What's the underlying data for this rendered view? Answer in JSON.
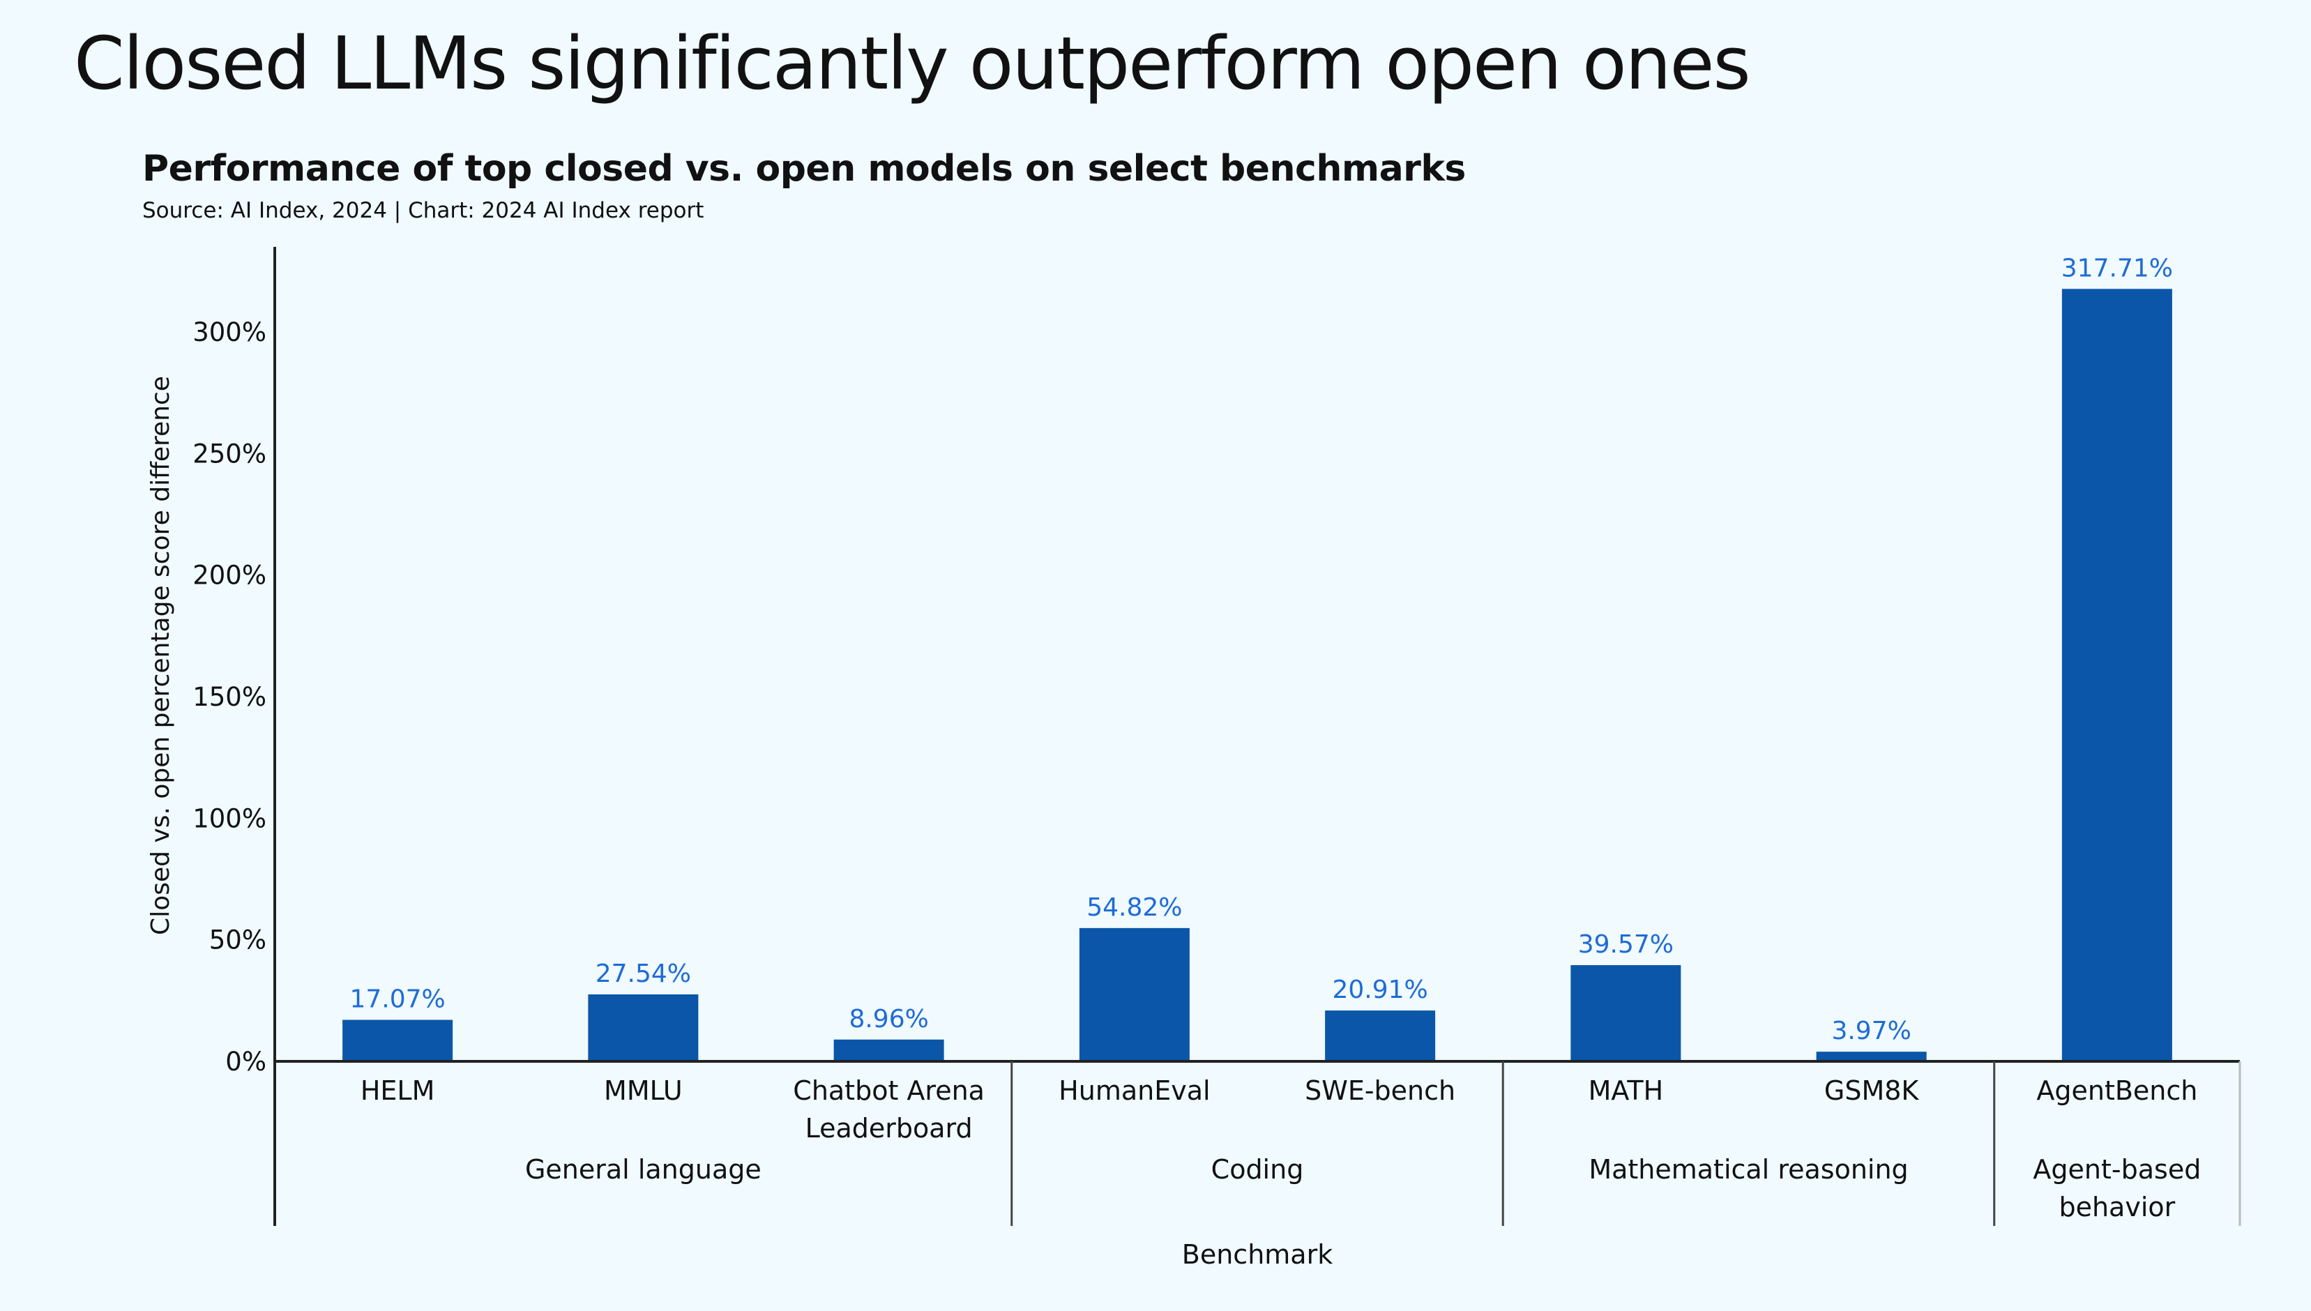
{
  "slide": {
    "title": "Closed LLMs significantly outperform open ones"
  },
  "chart_data": {
    "type": "bar",
    "title": "Performance of top closed vs. open models on select benchmarks",
    "subtitle": "Source: AI Index, 2024 | Chart: 2024 AI Index report",
    "xlabel": "Benchmark",
    "ylabel": "Closed vs. open percentage score difference",
    "ylim": [
      0,
      335
    ],
    "yticks": [
      0,
      50,
      100,
      150,
      200,
      250,
      300
    ],
    "ytick_labels": [
      "0%",
      "50%",
      "100%",
      "150%",
      "200%",
      "250%",
      "300%"
    ],
    "grid": false,
    "bar_color": "#0b56a8",
    "label_color": "#1e6bd6",
    "categories": [
      {
        "label": "HELM",
        "group": "General language"
      },
      {
        "label": "MMLU",
        "group": "General language"
      },
      {
        "label": "Chatbot Arena\nLeaderboard",
        "group": "General language"
      },
      {
        "label": "HumanEval",
        "group": "Coding"
      },
      {
        "label": "SWE-bench",
        "group": "Coding"
      },
      {
        "label": "MATH",
        "group": "Mathematical reasoning"
      },
      {
        "label": "GSM8K",
        "group": "Mathematical reasoning"
      },
      {
        "label": "AgentBench",
        "group": "Agent-based\nbehavior"
      }
    ],
    "values": [
      17.07,
      27.54,
      8.96,
      54.82,
      20.91,
      39.57,
      3.97,
      317.71
    ],
    "value_labels": [
      "17.07%",
      "27.54%",
      "8.96%",
      "54.82%",
      "20.91%",
      "39.57%",
      "3.97%",
      "317.71%"
    ],
    "groups": [
      "General language",
      "Coding",
      "Mathematical reasoning",
      "Agent-based\nbehavior"
    ]
  }
}
